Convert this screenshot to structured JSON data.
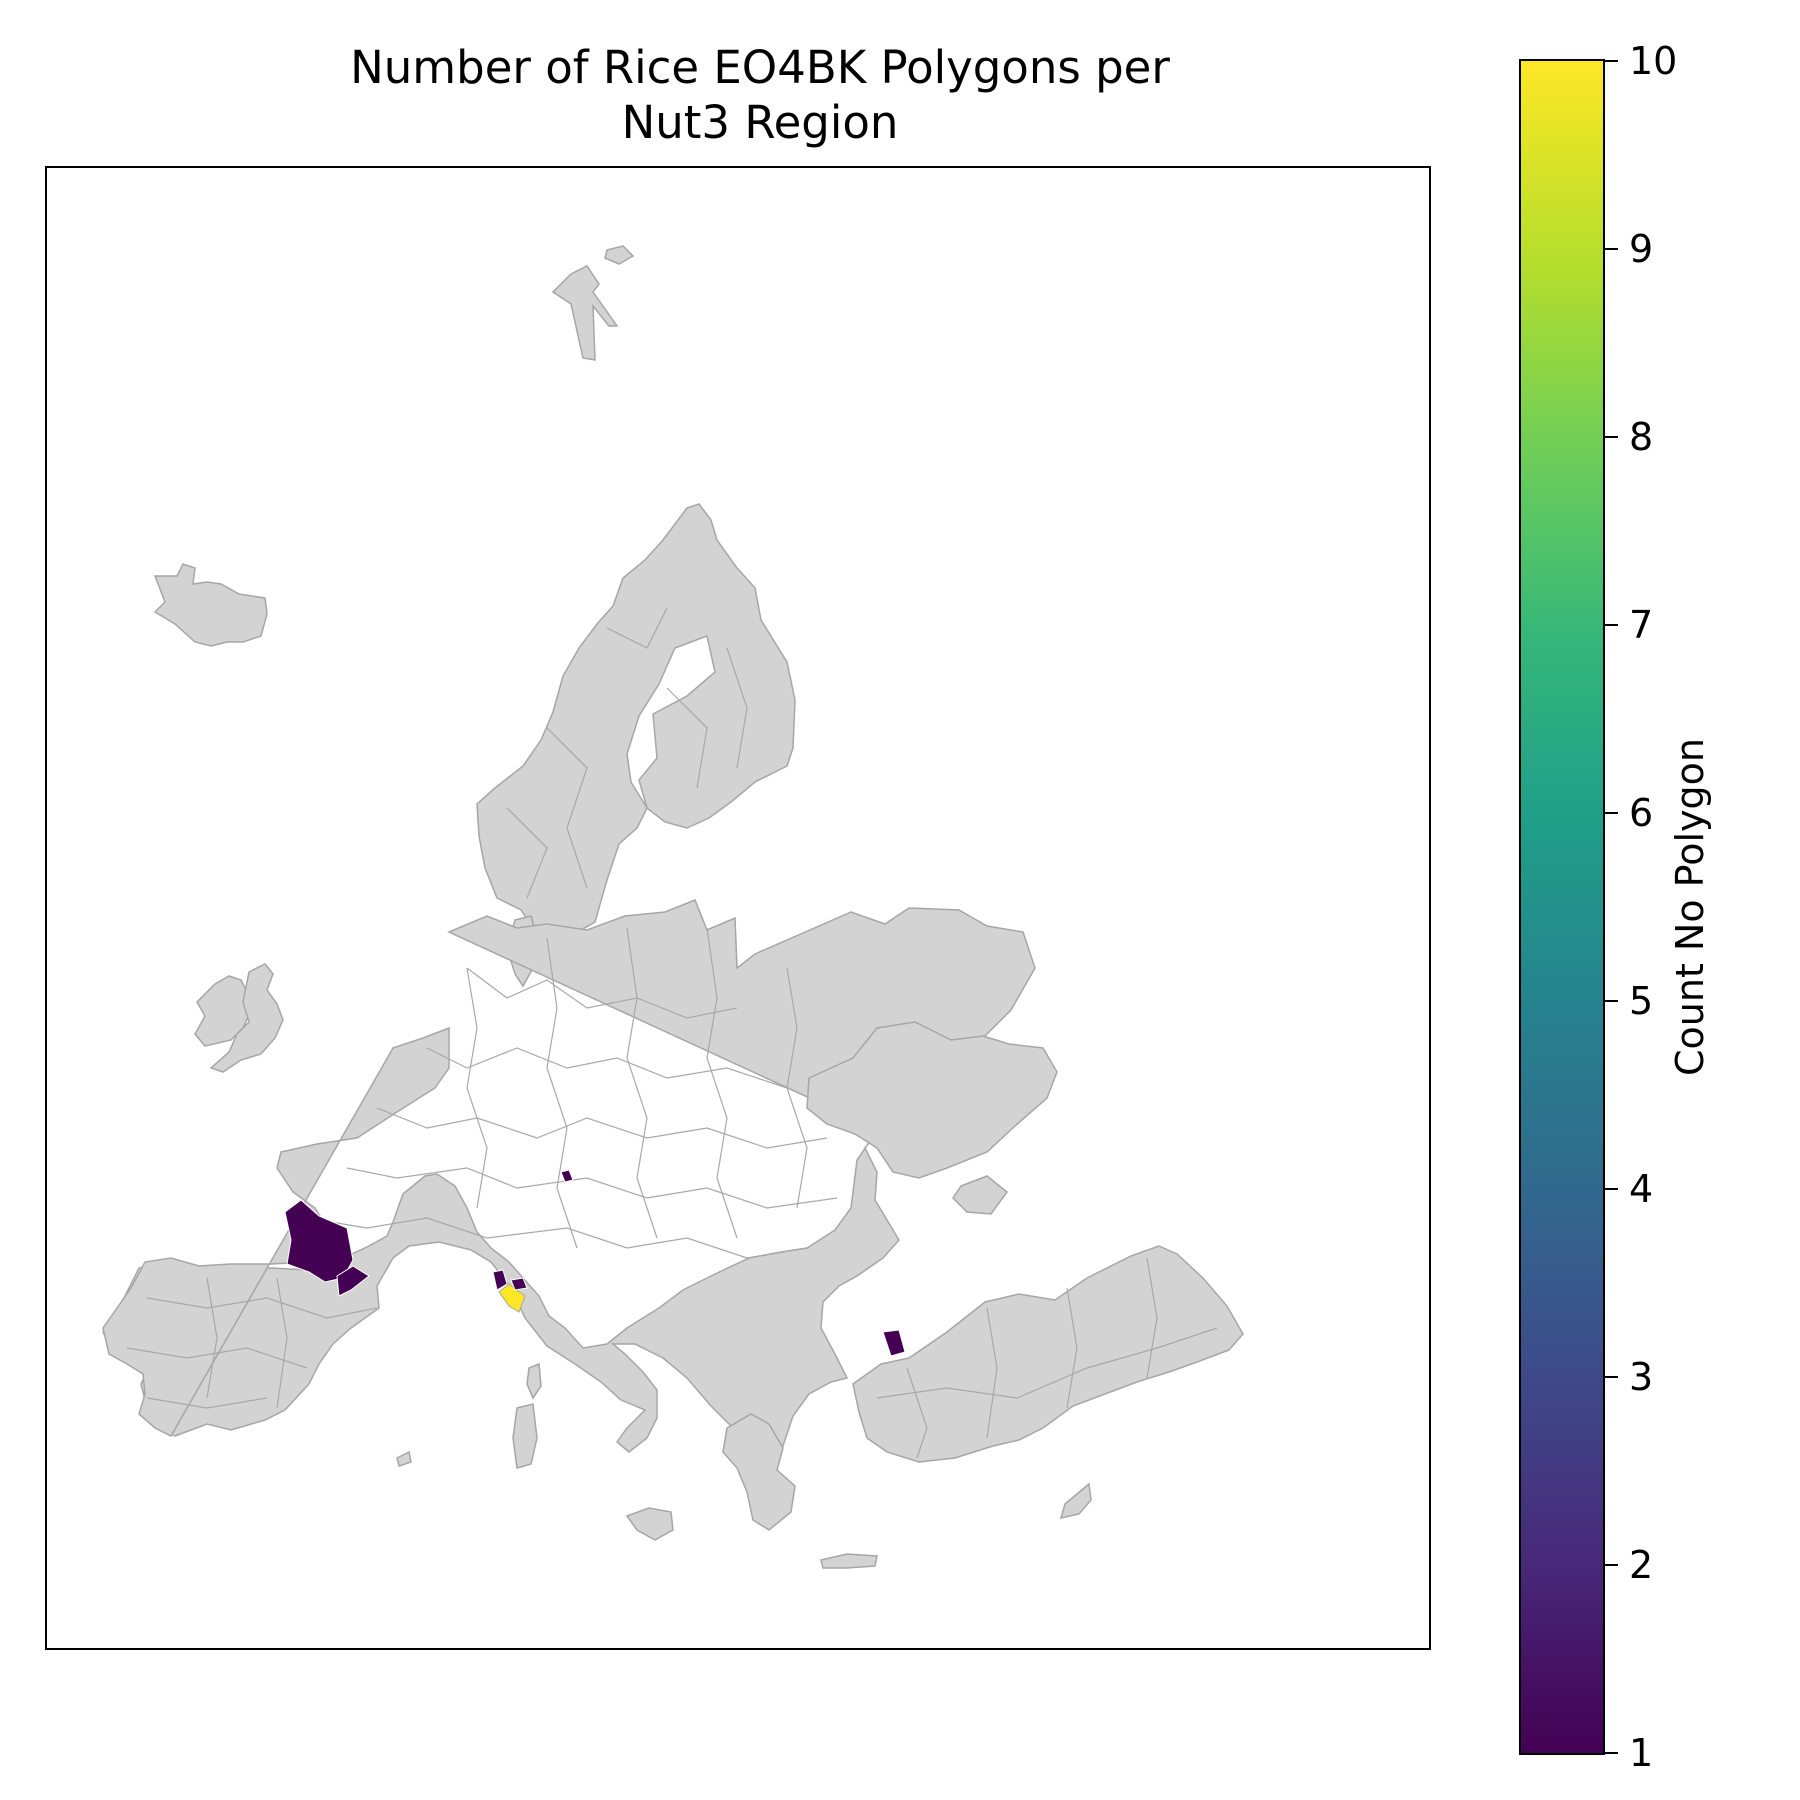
{
  "title_line1": "Number of Rice EO4BK Polygons per",
  "title_line2": "Nut3 Region",
  "colorbar": {
    "label": "Count No Polygon",
    "min": 1,
    "max": 10,
    "ticks": [
      "1",
      "2",
      "3",
      "4",
      "5",
      "6",
      "7",
      "8",
      "9",
      "10"
    ],
    "colormap": "viridis"
  },
  "map": {
    "background_color": "#d3d3d3",
    "no_data_color": "#d3d3d3",
    "highlighted_regions": [
      {
        "area": "north-east Spain (inland)",
        "count": 1,
        "color": "#440154"
      },
      {
        "area": "eastern Spain (coast)",
        "count": 1,
        "color": "#440154"
      },
      {
        "area": "north-west Italy (Piedmont)",
        "count": 10,
        "color": "#fde725"
      },
      {
        "area": "north-west Italy (Lombardy)",
        "count": 1,
        "color": "#440154"
      },
      {
        "area": "south Germany",
        "count": 1,
        "color": "#440154"
      },
      {
        "area": "Bulgaria",
        "count": 1,
        "color": "#440154"
      }
    ]
  }
}
